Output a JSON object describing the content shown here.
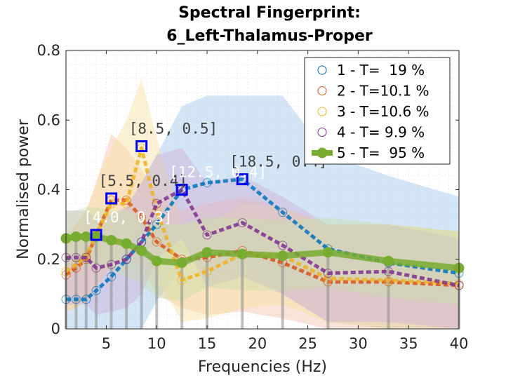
{
  "chart_data": {
    "type": "line",
    "title": [
      "Spectral Fingerprint:",
      "6_Left-Thalamus-Proper"
    ],
    "xlabel": "Frequencies (Hz)",
    "ylabel": "Normalised power",
    "xlim": [
      1,
      40
    ],
    "ylim": [
      0,
      0.8
    ],
    "xticks": [
      5,
      10,
      15,
      20,
      25,
      30,
      35,
      40
    ],
    "yticks": [
      0,
      0.2,
      0.4,
      0.6,
      0.8
    ],
    "ytick_labels": [
      "0",
      "0.2",
      "0.4",
      "0.6",
      "0.8"
    ],
    "grid": true,
    "legend_position": "top-right",
    "x": [
      1,
      2,
      3,
      4,
      5.5,
      7,
      8.5,
      10,
      12.5,
      15,
      18.5,
      22.5,
      27,
      33,
      40
    ],
    "series": [
      {
        "name": "1 - T=  19 %",
        "color": "#0072bd",
        "fill": "#9fc8ea",
        "values": [
          0.085,
          0.085,
          0.085,
          0.11,
          0.15,
          0.2,
          0.25,
          0.3,
          0.4,
          0.42,
          0.43,
          0.335,
          0.23,
          0.19,
          0.16
        ],
        "upper": [
          0.2,
          0.22,
          0.25,
          0.27,
          0.3,
          0.35,
          0.42,
          0.5,
          0.64,
          0.67,
          0.67,
          0.67,
          0.5,
          0.44,
          0.38
        ],
        "lower": [
          0,
          0,
          0,
          0,
          0,
          0,
          0,
          0.08,
          0.18,
          0.2,
          0.2,
          0.1,
          0.02,
          0,
          0
        ]
      },
      {
        "name": "2 - T=10.1 %",
        "color": "#d95319",
        "fill": "#f4c0a8",
        "values": [
          0.155,
          0.175,
          0.2,
          0.27,
          0.37,
          0.37,
          0.32,
          0.25,
          0.2,
          0.205,
          0.225,
          0.19,
          0.135,
          0.135,
          0.125
        ],
        "upper": [
          0.26,
          0.3,
          0.34,
          0.42,
          0.56,
          0.52,
          0.46,
          0.38,
          0.34,
          0.36,
          0.38,
          0.35,
          0.3,
          0.3,
          0.28
        ],
        "lower": [
          0.05,
          0.06,
          0.08,
          0.12,
          0.18,
          0.2,
          0.18,
          0.1,
          0.06,
          0.04,
          0.05,
          0.03,
          0,
          0,
          0
        ]
      },
      {
        "name": "3 - T=10.6 %",
        "color": "#edb120",
        "fill": "#f8dfa0",
        "values": [
          0.165,
          0.185,
          0.21,
          0.27,
          0.36,
          0.36,
          0.52,
          0.34,
          0.14,
          0.165,
          0.215,
          0.21,
          0.145,
          0.14,
          0.13
        ],
        "upper": [
          0.28,
          0.3,
          0.34,
          0.42,
          0.52,
          0.6,
          0.72,
          0.55,
          0.3,
          0.3,
          0.36,
          0.35,
          0.3,
          0.3,
          0.28
        ],
        "lower": [
          0.05,
          0.06,
          0.08,
          0.12,
          0.18,
          0.2,
          0.3,
          0.15,
          0.02,
          0.03,
          0.06,
          0.07,
          0.02,
          0,
          0
        ]
      },
      {
        "name": "4 - T= 9.9 %",
        "color": "#7e2f8e",
        "fill": "#cfb0d6",
        "values": [
          0.205,
          0.205,
          0.205,
          0.175,
          0.185,
          0.2,
          0.25,
          0.36,
          0.4,
          0.27,
          0.305,
          0.24,
          0.16,
          0.165,
          0.125
        ],
        "upper": [
          0.34,
          0.34,
          0.34,
          0.32,
          0.33,
          0.35,
          0.42,
          0.5,
          0.52,
          0.42,
          0.44,
          0.38,
          0.3,
          0.3,
          0.26
        ],
        "lower": [
          0.07,
          0.07,
          0.07,
          0.04,
          0.05,
          0.06,
          0.1,
          0.2,
          0.26,
          0.12,
          0.15,
          0.1,
          0.02,
          0.02,
          0
        ]
      },
      {
        "name": "5 - T=  95 %",
        "color": "#77ac30",
        "fill": "#c8dfa8",
        "values": [
          0.26,
          0.265,
          0.265,
          0.265,
          0.255,
          0.245,
          0.225,
          0.195,
          0.19,
          0.22,
          0.215,
          0.21,
          0.22,
          0.195,
          0.175
        ],
        "upper": [
          0.34,
          0.34,
          0.35,
          0.35,
          0.34,
          0.34,
          0.32,
          0.3,
          0.3,
          0.32,
          0.32,
          0.31,
          0.32,
          0.3,
          0.28
        ],
        "lower": [
          0.18,
          0.19,
          0.18,
          0.18,
          0.17,
          0.15,
          0.13,
          0.09,
          0.08,
          0.12,
          0.11,
          0.11,
          0.12,
          0.09,
          0.07
        ]
      }
    ],
    "stems": {
      "color": "#8c8c8c",
      "x": [
        1,
        2,
        3,
        4,
        5.5,
        7,
        8.5,
        10,
        12.5,
        15,
        18.5,
        22.5,
        27,
        33,
        40
      ],
      "top": [
        0.26,
        0.265,
        0.265,
        0.265,
        0.255,
        0.245,
        0.225,
        0.195,
        0.19,
        0.22,
        0.215,
        0.21,
        0.22,
        0.195,
        0.175
      ]
    },
    "peaks": [
      {
        "x": 4,
        "y": 0.27,
        "label": "[4.0, 0.3]",
        "label_color": "#ffffff"
      },
      {
        "x": 5.5,
        "y": 0.375,
        "label": "[5.5, 0.4]",
        "label_color": "#404040"
      },
      {
        "x": 8.5,
        "y": 0.525,
        "label": "[8.5, 0.5]",
        "label_color": "#404040"
      },
      {
        "x": 12.5,
        "y": 0.4,
        "label": "[12.5, 0.4]",
        "label_color": "#ffffff"
      },
      {
        "x": 18.5,
        "y": 0.43,
        "label": "[18.5, 0.4]",
        "label_color": "#404040"
      }
    ]
  }
}
